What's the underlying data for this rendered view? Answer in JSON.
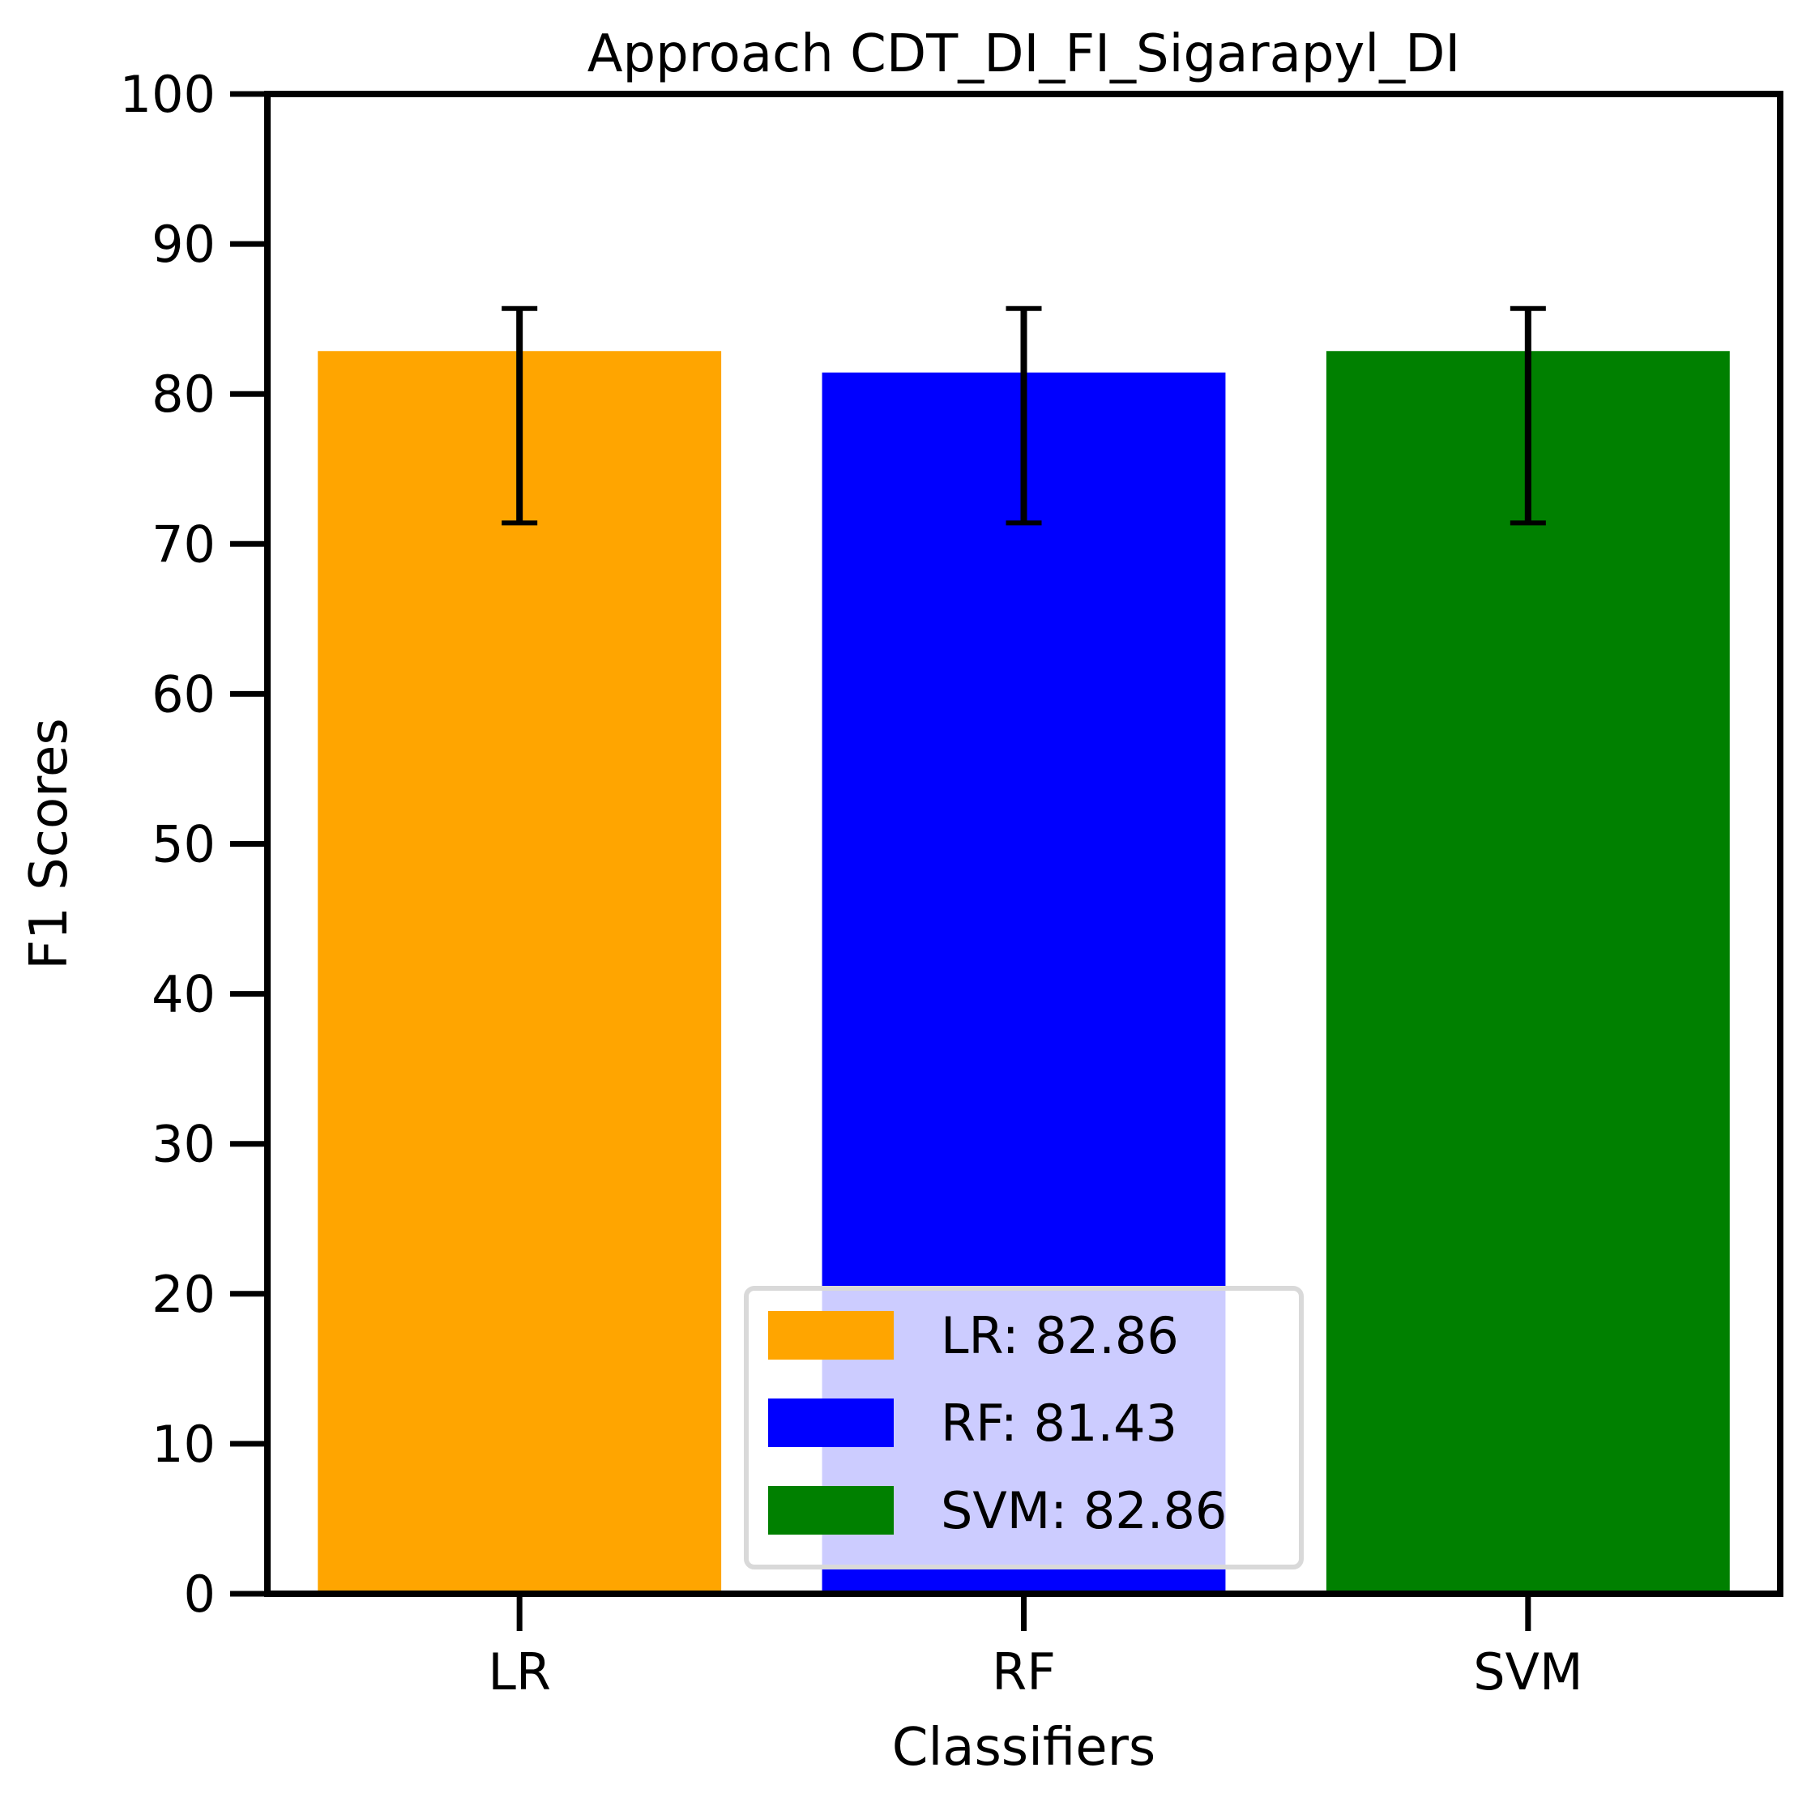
{
  "chart_data": {
    "type": "bar",
    "title": "Approach CDT_DI_FI_Sigarapyl_DI",
    "xlabel": "Classifiers",
    "ylabel": "F1 Scores",
    "ylim": [
      0,
      100
    ],
    "yticks": [
      0,
      10,
      20,
      30,
      40,
      50,
      60,
      70,
      80,
      90,
      100
    ],
    "categories": [
      "LR",
      "RF",
      "SVM"
    ],
    "values": [
      82.86,
      81.43,
      82.86
    ],
    "error_bars": [
      {
        "low": 71.4,
        "high": 85.7
      },
      {
        "low": 71.4,
        "high": 85.7
      },
      {
        "low": 71.4,
        "high": 85.7
      }
    ],
    "colors": [
      "#ffa500",
      "#0000ff",
      "#008000"
    ],
    "grid": false,
    "legend": {
      "placement": "lower-center",
      "entries": [
        "LR: 82.86",
        "RF: 81.43",
        "SVM: 82.86"
      ]
    }
  }
}
